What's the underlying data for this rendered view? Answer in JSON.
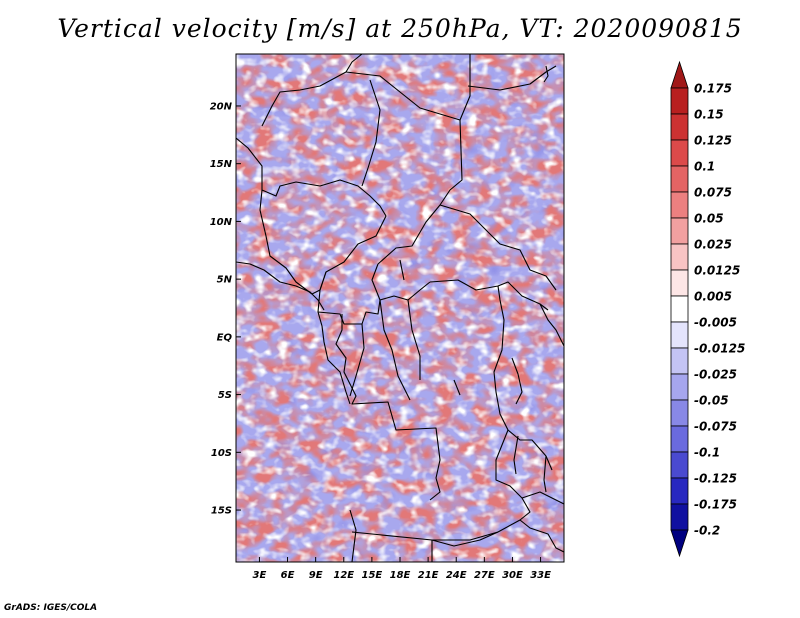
{
  "title": "Vertical velocity [m/s] at 250hPa, VT: 2020090815",
  "footer": "GrADS: IGES/COLA",
  "map": {
    "lat_range": [
      -19.5,
      24.5
    ],
    "lon_range": [
      0.5,
      35.5
    ],
    "lat_ticks": [
      {
        "value": 20,
        "label": "20N"
      },
      {
        "value": 15,
        "label": "15N"
      },
      {
        "value": 10,
        "label": "10N"
      },
      {
        "value": 5,
        "label": "5N"
      },
      {
        "value": 0,
        "label": "EQ"
      },
      {
        "value": -5,
        "label": "5S"
      },
      {
        "value": -10,
        "label": "10S"
      },
      {
        "value": -15,
        "label": "15S"
      }
    ],
    "lon_ticks": [
      {
        "value": 3,
        "label": "3E"
      },
      {
        "value": 6,
        "label": "6E"
      },
      {
        "value": 9,
        "label": "9E"
      },
      {
        "value": 12,
        "label": "12E"
      },
      {
        "value": 15,
        "label": "15E"
      },
      {
        "value": 18,
        "label": "18E"
      },
      {
        "value": 21,
        "label": "21E"
      },
      {
        "value": 24,
        "label": "24E"
      },
      {
        "value": 27,
        "label": "27E"
      },
      {
        "value": 30,
        "label": "30E"
      },
      {
        "value": 33,
        "label": "33E"
      }
    ]
  },
  "colorbar": {
    "labels": [
      "0.175",
      "0.15",
      "0.125",
      "0.1",
      "0.075",
      "0.05",
      "0.025",
      "0.0125",
      "0.005",
      "-0.005",
      "-0.0125",
      "-0.025",
      "-0.05",
      "-0.075",
      "-0.1",
      "-0.125",
      "-0.175",
      "-0.2"
    ],
    "colors": [
      "#a01818",
      "#b82020",
      "#cc3232",
      "#dc4a4a",
      "#e46464",
      "#ec8080",
      "#f2a0a0",
      "#f8c4c4",
      "#fde6e6",
      "#ffffff",
      "#e4e4fc",
      "#c4c4f4",
      "#a6a6ee",
      "#8888e6",
      "#6a6ade",
      "#4a4ad0",
      "#2828c0",
      "#1010a0",
      "#000080"
    ]
  }
}
